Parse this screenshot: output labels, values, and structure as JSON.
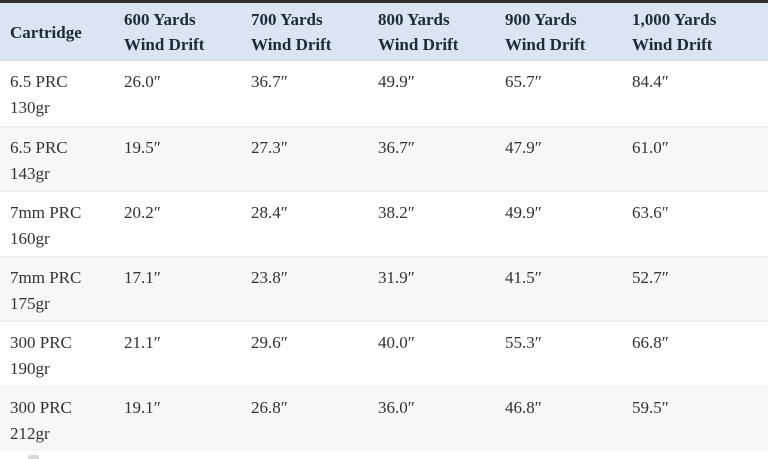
{
  "chart_data": {
    "type": "table",
    "columns": [
      "Cartridge",
      "600 Yards Wind Drift",
      "700 Yards Wind Drift",
      "800 Yards Wind Drift",
      "900 Yards Wind Drift",
      "1,000 Yards Wind Drift"
    ],
    "rows": [
      {
        "cartridge": "6.5 PRC 130gr",
        "wind_drift_inches": [
          26.0,
          36.7,
          49.9,
          65.7,
          84.4
        ]
      },
      {
        "cartridge": "6.5 PRC 143gr",
        "wind_drift_inches": [
          19.5,
          27.3,
          36.7,
          47.9,
          61.0
        ]
      },
      {
        "cartridge": "7mm PRC 160gr",
        "wind_drift_inches": [
          20.2,
          28.4,
          38.2,
          49.9,
          63.6
        ]
      },
      {
        "cartridge": "7mm PRC 175gr",
        "wind_drift_inches": [
          17.1,
          23.8,
          31.9,
          41.5,
          52.7
        ]
      },
      {
        "cartridge": "300 PRC 190gr",
        "wind_drift_inches": [
          21.1,
          29.6,
          40.0,
          55.3,
          66.8
        ]
      },
      {
        "cartridge": "300 PRC 212gr",
        "wind_drift_inches": [
          19.1,
          26.8,
          36.0,
          46.8,
          59.5
        ]
      }
    ]
  },
  "table": {
    "header": [
      {
        "line1": "Cartridge",
        "line2": ""
      },
      {
        "line1": "600 Yards",
        "line2": "Wind Drift"
      },
      {
        "line1": "700 Yards",
        "line2": "Wind Drift"
      },
      {
        "line1": "800 Yards",
        "line2": "Wind Drift"
      },
      {
        "line1": "900 Yards",
        "line2": "Wind Drift"
      },
      {
        "line1": "1,000 Yards",
        "line2": "Wind Drift"
      }
    ],
    "rows": [
      {
        "name1": "6.5 PRC",
        "name2": "130gr",
        "values": [
          "26.0″",
          "36.7″",
          "49.9″",
          "65.7″",
          "84.4″"
        ]
      },
      {
        "name1": "6.5 PRC",
        "name2": "143gr",
        "values": [
          "19.5″",
          "27.3″",
          "36.7″",
          "47.9″",
          "61.0″"
        ]
      },
      {
        "name1": "7mm PRC",
        "name2": "160gr",
        "values": [
          "20.2″",
          "28.4″",
          "38.2″",
          "49.9″",
          "63.6″"
        ]
      },
      {
        "name1": "7mm PRC",
        "name2": "175gr",
        "values": [
          "17.1″",
          "23.8″",
          "31.9″",
          "41.5″",
          "52.7″"
        ]
      },
      {
        "name1": "300 PRC",
        "name2": "190gr",
        "values": [
          "21.1″",
          "29.6″",
          "40.0″",
          "55.3″",
          "66.8″"
        ]
      },
      {
        "name1": "300 PRC",
        "name2": "212gr",
        "values": [
          "19.1″",
          "26.8″",
          "36.0″",
          "46.8″",
          "59.5″"
        ]
      }
    ]
  },
  "colors": {
    "header_bg": "#d9e6f1",
    "header_text": "#1c2b39",
    "body_text": "#323232",
    "alt_row_bg": "#f7f7f7",
    "row_divider": "#ececec",
    "top_border": "#2f2f2f"
  }
}
